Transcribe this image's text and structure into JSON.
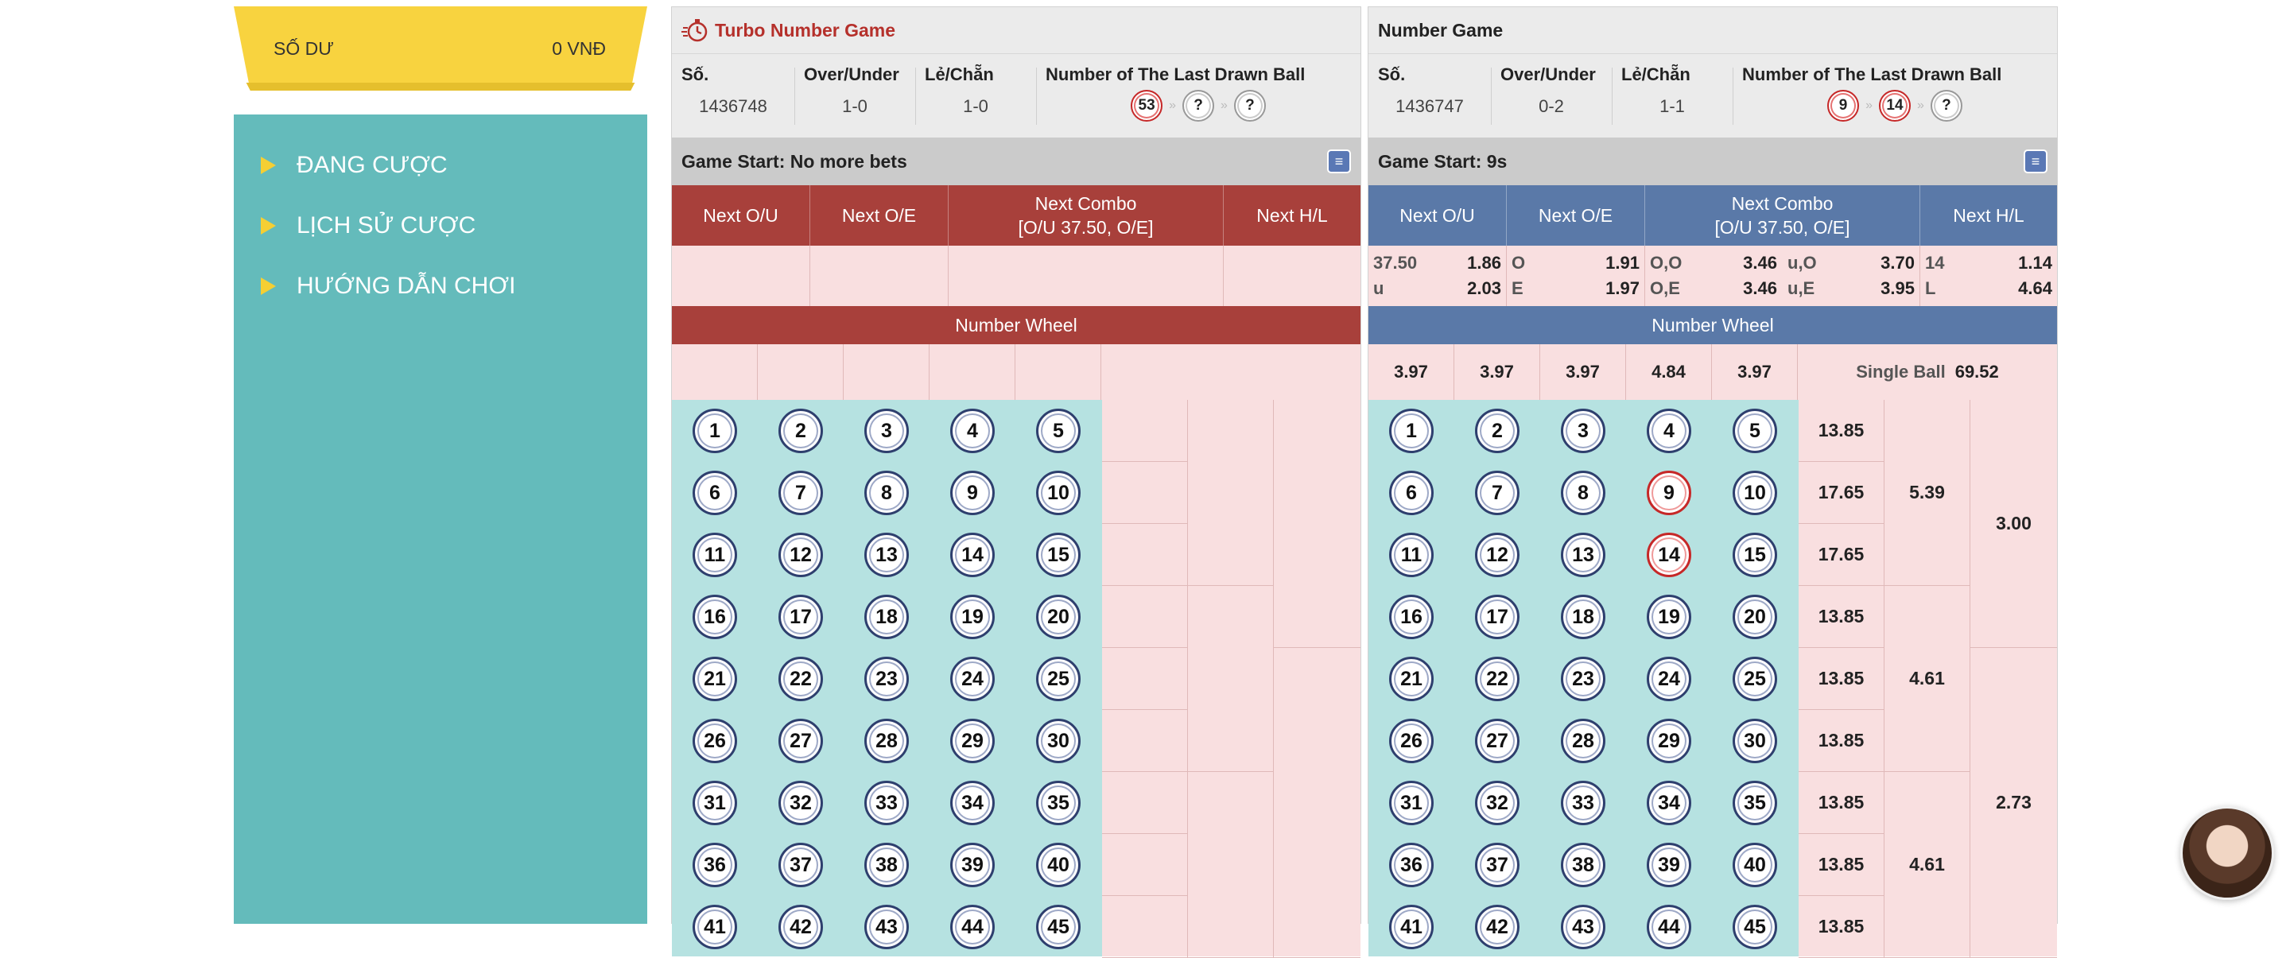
{
  "balance": {
    "label": "SỐ DƯ",
    "value": "0 VNĐ"
  },
  "sidebar": {
    "items": [
      {
        "label": "ĐANG CƯỢC"
      },
      {
        "label": "LỊCH SỬ CƯỢC"
      },
      {
        "label": "HƯỚNG DẪN CHƠI"
      }
    ]
  },
  "turbo": {
    "title": "Turbo Number Game",
    "info": {
      "no_label": "Số.",
      "no_value": "1436748",
      "ou_label": "Over/Under",
      "ou_value": "1-0",
      "oe_label": "Lẻ/Chẵn",
      "oe_value": "1-0",
      "last_label": "Number of The Last Drawn Ball",
      "last_balls": [
        "53",
        "?",
        "?"
      ]
    },
    "status": "Game Start: No more bets",
    "headers": {
      "ou": "Next O/U",
      "oe": "Next O/E",
      "combo_line1": "Next Combo",
      "combo_line2": "[O/U 37.50, O/E]",
      "hl": "Next H/L"
    },
    "wheel_title": "Number Wheel",
    "balls": [
      "1",
      "2",
      "3",
      "4",
      "5",
      "6",
      "7",
      "8",
      "9",
      "10",
      "11",
      "12",
      "13",
      "14",
      "15",
      "16",
      "17",
      "18",
      "19",
      "20",
      "21",
      "22",
      "23",
      "24",
      "25",
      "26",
      "27",
      "28",
      "29",
      "30",
      "31",
      "32",
      "33",
      "34",
      "35",
      "36",
      "37",
      "38",
      "39",
      "40",
      "41",
      "42",
      "43",
      "44",
      "45"
    ]
  },
  "normal": {
    "title": "Number Game",
    "info": {
      "no_label": "Số.",
      "no_value": "1436747",
      "ou_label": "Over/Under",
      "ou_value": "0-2",
      "oe_label": "Lẻ/Chẵn",
      "oe_value": "1-1",
      "last_label": "Number of The Last Drawn Ball",
      "last_balls": [
        "9",
        "14",
        "?"
      ]
    },
    "status": "Game Start: 9s",
    "headers": {
      "ou": "Next O/U",
      "oe": "Next O/E",
      "combo_line1": "Next Combo",
      "combo_line2": "[O/U 37.50, O/E]",
      "hl": "Next H/L"
    },
    "odds": {
      "ou": [
        {
          "k": "37.50",
          "v": "1.86"
        },
        {
          "k": "u",
          "v": "2.03"
        }
      ],
      "oe": [
        {
          "k": "O",
          "v": "1.91"
        },
        {
          "k": "E",
          "v": "1.97"
        }
      ],
      "combo": [
        {
          "k": "O,O",
          "v": "3.46"
        },
        {
          "k": "u,O",
          "v": "3.70"
        },
        {
          "k": "O,E",
          "v": "3.46"
        },
        {
          "k": "u,E",
          "v": "3.95"
        }
      ],
      "hl": [
        {
          "k": "14",
          "v": "1.14"
        },
        {
          "k": "L",
          "v": "4.64"
        }
      ]
    },
    "wheel_title": "Number Wheel",
    "wheel_odds": [
      "3.97",
      "3.97",
      "3.97",
      "4.84",
      "3.97"
    ],
    "single_label": "Single Ball",
    "single_value": "69.52",
    "row_odds": [
      "13.85",
      "17.65",
      "17.65",
      "13.85",
      "13.85",
      "13.85",
      "13.85",
      "13.85",
      "13.85"
    ],
    "group_odds": [
      "5.39",
      "4.61",
      "4.61"
    ],
    "big_odds": [
      "3.00",
      "2.73"
    ],
    "highlighted": [
      "9",
      "14"
    ],
    "balls": [
      "1",
      "2",
      "3",
      "4",
      "5",
      "6",
      "7",
      "8",
      "9",
      "10",
      "11",
      "12",
      "13",
      "14",
      "15",
      "16",
      "17",
      "18",
      "19",
      "20",
      "21",
      "22",
      "23",
      "24",
      "25",
      "26",
      "27",
      "28",
      "29",
      "30",
      "31",
      "32",
      "33",
      "34",
      "35",
      "36",
      "37",
      "38",
      "39",
      "40",
      "41",
      "42",
      "43",
      "44",
      "45"
    ]
  }
}
